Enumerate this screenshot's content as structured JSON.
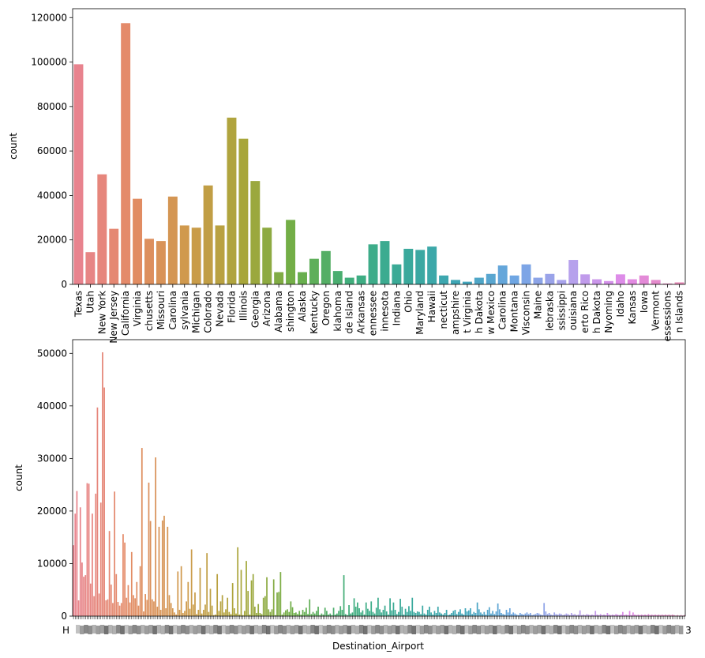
{
  "chart_data": [
    {
      "type": "bar",
      "title": "",
      "xlabel": "",
      "ylabel": "count",
      "ylim": [
        0,
        124000
      ],
      "yticks": [
        0,
        20000,
        40000,
        60000,
        80000,
        100000,
        120000
      ],
      "ytick_labels": [
        "0",
        "20000",
        "40000",
        "60000",
        "80000",
        "100000",
        "120000"
      ],
      "categories": [
        "Texas",
        "Utah",
        "New York",
        "New Jersey",
        "California",
        "Virginia",
        "Massachusetts",
        "Missouri",
        "North Carolina",
        "Pennsylvania",
        "Michigan",
        "Colorado",
        "Nevada",
        "Florida",
        "Illinois",
        "Georgia",
        "Arizona",
        "Alabama",
        "Washington",
        "Alaska",
        "Kentucky",
        "Oregon",
        "Oklahoma",
        "Rhode Island",
        "Arkansas",
        "Tennessee",
        "Minnesota",
        "Indiana",
        "Ohio",
        "Maryland",
        "Hawaii",
        "Connecticut",
        "New Hampshire",
        "West Virginia",
        "North Dakota",
        "New Mexico",
        "South Carolina",
        "Montana",
        "Wisconsin",
        "Maine",
        "Nebraska",
        "Mississippi",
        "Louisiana",
        "Puerto Rico",
        "South Dakota",
        "Wyoming",
        "Idaho",
        "Kansas",
        "Iowa",
        "Vermont",
        "U.S. Pacific Trust Territories and Possessions",
        "U.S. Virgin Islands"
      ],
      "tick_labels": [
        "Texas",
        "Utah",
        "New York",
        "New Jersey",
        "California",
        "Virginia",
        "chusetts",
        "Missouri",
        "Carolina",
        "sylvania",
        "Michigan",
        "Colorado",
        "Nevada",
        "Florida",
        "Illinois",
        "Georgia",
        "Arizona",
        "Alabama",
        "shington",
        "Alaska",
        "Kentucky",
        "Oregon",
        "klahoma",
        "de Island",
        "Arkansas",
        "ennessee",
        "innesota",
        "Indiana",
        "Ohio",
        "Maryland",
        "Hawaii",
        "necticut",
        "ampshire",
        "t Virginia",
        "h Dakota",
        "w Mexico",
        "Carolina",
        "Montana",
        "Visconsin",
        "Maine",
        "lebraska",
        "ssissippi",
        "ouisiana",
        "erto Rico",
        "h Dakota",
        "Nyoming",
        "Idaho",
        "Kansas",
        "Iowa",
        "Vermont",
        "essessions",
        "n Islands"
      ],
      "values": [
        99000,
        14500,
        49500,
        25000,
        117500,
        38500,
        20500,
        19500,
        39500,
        26500,
        25500,
        44500,
        26500,
        75000,
        65500,
        46500,
        25500,
        5500,
        29000,
        5500,
        11500,
        15000,
        6000,
        3000,
        4000,
        18000,
        19500,
        9000,
        16000,
        15500,
        17000,
        4000,
        2000,
        1200,
        3000,
        4700,
        8500,
        4000,
        9000,
        3000,
        4700,
        2000,
        11000,
        4500,
        2300,
        1500,
        4500,
        2300,
        4000,
        2000,
        400,
        900
      ]
    },
    {
      "type": "bar",
      "title": "",
      "xlabel": "Destination_Airport",
      "ylabel": "count",
      "ylim": [
        0,
        52600
      ],
      "yticks": [
        0,
        10000,
        20000,
        30000,
        40000,
        50000
      ],
      "ytick_labels": [
        "0",
        "10000",
        "20000",
        "30000",
        "40000",
        "50000"
      ],
      "first_tick_label": "H",
      "last_tick_label": "3",
      "category_count": 360,
      "values": [
        13500,
        19500,
        23800,
        3000,
        20700,
        10200,
        7500,
        7800,
        25300,
        25200,
        6200,
        19500,
        3800,
        23300,
        39700,
        4300,
        21600,
        50200,
        43500,
        3000,
        3200,
        16200,
        6000,
        2500,
        23700,
        8000,
        2700,
        2000,
        2500,
        15600,
        14000,
        3500,
        5900,
        2600,
        12200,
        4000,
        3400,
        6500,
        2000,
        9500,
        32000,
        900,
        4200,
        3100,
        25400,
        18100,
        3200,
        2800,
        30200,
        1800,
        17000,
        1200,
        18200,
        19100,
        1500,
        17000,
        4000,
        2500,
        1500,
        700,
        300,
        8500,
        1200,
        9500,
        600,
        1000,
        2800,
        6500,
        1400,
        12700,
        2200,
        4500,
        400,
        1200,
        9200,
        500,
        1200,
        2200,
        12000,
        800,
        5200,
        2000,
        200,
        300,
        8000,
        1000,
        2800,
        4000,
        700,
        1300,
        3500,
        800,
        400,
        6300,
        1500,
        500,
        13100,
        300,
        8800,
        200,
        1000,
        10500,
        4800,
        300,
        6800,
        8000,
        1800,
        600,
        2300,
        600,
        400,
        3500,
        3800,
        7400,
        1300,
        800,
        1300,
        7000,
        200,
        4500,
        4600,
        8400,
        300,
        700,
        1100,
        1300,
        800,
        2800,
        1700,
        600,
        700,
        400,
        1000,
        300,
        1200,
        800,
        1600,
        400,
        3200,
        400,
        800,
        500,
        1000,
        1800,
        200,
        500,
        300,
        1600,
        1000,
        300,
        500,
        200,
        1600,
        300,
        500,
        1000,
        1900,
        1200,
        7800,
        400,
        200,
        2100,
        500,
        700,
        3400,
        1800,
        2600,
        1500,
        700,
        1100,
        300,
        2600,
        1400,
        1000,
        2800,
        800,
        500,
        1600,
        3500,
        1300,
        700,
        1200,
        2000,
        900,
        300,
        3400,
        1100,
        2600,
        1200,
        400,
        800,
        3300,
        1800,
        300,
        1400,
        800,
        1900,
        1000,
        3500,
        800,
        600,
        900,
        800,
        400,
        2000,
        500,
        300,
        1200,
        1800,
        700,
        300,
        1000,
        600,
        1800,
        700,
        500,
        300,
        600,
        1200,
        200,
        300,
        600,
        1000,
        1200,
        400,
        800,
        1300,
        500,
        300,
        1500,
        900,
        1100,
        1500,
        400,
        800,
        600,
        2600,
        1300,
        700,
        400,
        800,
        300,
        1200,
        1700,
        500,
        1000,
        400,
        900,
        2400,
        1300,
        600,
        400,
        300,
        1200,
        700,
        1500,
        400,
        700,
        500,
        300,
        200,
        600,
        400,
        300,
        500,
        700,
        400,
        600,
        200,
        300,
        400,
        600,
        500,
        300,
        200,
        2500,
        900,
        400,
        600,
        300,
        200,
        700,
        400,
        300,
        500,
        400,
        200,
        300,
        500,
        400,
        200,
        600,
        300,
        400,
        200,
        300,
        1100,
        200,
        300,
        200,
        400,
        300,
        200,
        300,
        200,
        1000,
        300,
        200,
        400,
        200,
        300,
        200,
        600,
        300,
        200,
        300,
        200,
        400,
        300,
        200,
        300,
        800,
        200,
        300,
        200,
        1000,
        200,
        700,
        300,
        200,
        300,
        200,
        300,
        200,
        300,
        200,
        400,
        200,
        300,
        200,
        300,
        200,
        300,
        200,
        300,
        200,
        300,
        200,
        300,
        200,
        300,
        200,
        100,
        200,
        100,
        200,
        100,
        200
      ]
    }
  ],
  "palette": [
    "#e8838e",
    "#e38b64",
    "#cf9a4c",
    "#a9a63a",
    "#6caf49",
    "#3fae7e",
    "#3aa99b",
    "#3ea6b8",
    "#70a6e4",
    "#b3a2ec",
    "#e18ae8",
    "#e78ab7"
  ]
}
